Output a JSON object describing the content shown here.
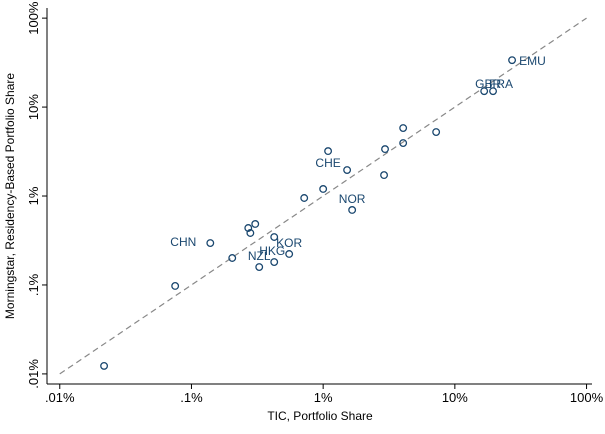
{
  "chart_data": {
    "type": "scatter",
    "x_label": "TIC, Portfolio Share",
    "y_label": "Morningstar, Residency-Based Portfolio Share",
    "log_x": true,
    "log_y": true,
    "xlim": [
      0.008,
      110
    ],
    "ylim": [
      0.0077,
      130
    ],
    "xticks": [
      {
        "value": 0.01,
        "label": ".01%"
      },
      {
        "value": 0.1,
        "label": ".1%"
      },
      {
        "value": 1,
        "label": "1%"
      },
      {
        "value": 10,
        "label": "10%"
      },
      {
        "value": 100,
        "label": "100%"
      }
    ],
    "yticks": [
      {
        "value": 0.01,
        "label": ".01%"
      },
      {
        "value": 0.1,
        "label": ".1%"
      },
      {
        "value": 1,
        "label": "1%"
      },
      {
        "value": 10,
        "label": "10%"
      },
      {
        "value": 100,
        "label": "100%"
      }
    ],
    "color": "#1a476f",
    "diagonal": [
      0.01,
      100
    ],
    "x": [
      0.0217,
      0.0752,
      0.139,
      0.204,
      0.27,
      0.28,
      0.305,
      0.327,
      0.425,
      0.425,
      0.552,
      0.718,
      1.0,
      1.09,
      1.52,
      1.66,
      2.9,
      2.95,
      4.05,
      4.05,
      7.21,
      16.7,
      19.5,
      27.2
    ],
    "y": [
      0.0123,
      0.0975,
      0.296,
      0.201,
      0.437,
      0.384,
      0.485,
      0.159,
      0.346,
      0.181,
      0.223,
      0.95,
      1.2,
      3.2,
      1.96,
      0.697,
      1.72,
      3.37,
      3.94,
      5.81,
      5.24,
      15.1,
      15.1,
      33.7
    ],
    "point_labels": [
      null,
      null,
      "CHN",
      null,
      null,
      null,
      null,
      "NZL",
      null,
      "HKG",
      "KOR",
      null,
      null,
      "CHE",
      null,
      "NOR",
      null,
      null,
      null,
      null,
      null,
      "GBR",
      "FRA",
      "EMU"
    ]
  }
}
